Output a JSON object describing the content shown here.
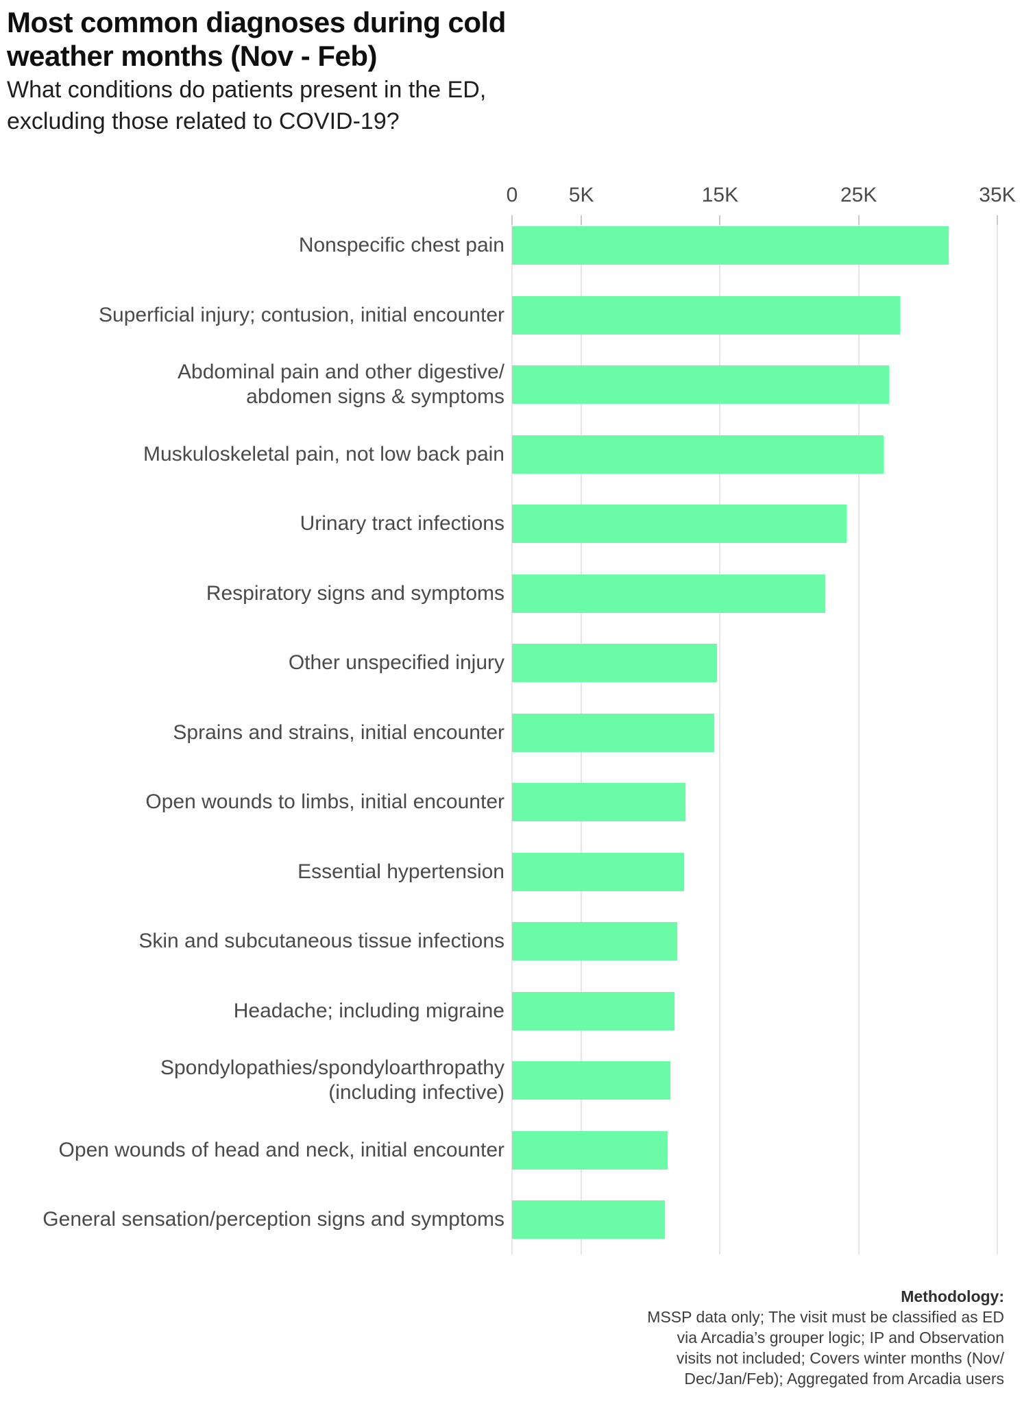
{
  "header": {
    "title": "Most common diagnoses during cold\nweather months (Nov - Feb)",
    "subtitle": "What conditions do patients present in the ED,\nexcluding those related to COVID-19?"
  },
  "chart_data": {
    "type": "bar",
    "orientation": "horizontal",
    "title": "Most common diagnoses during cold weather months (Nov - Feb)",
    "subtitle": "What conditions do patients present in the ED, excluding those related to COVID-19?",
    "xlabel": "",
    "ylabel": "",
    "xlim": [
      0,
      35000
    ],
    "grid": "vertical-gridlines-at-labeled-ticks",
    "legend": "none",
    "x_ticks": [
      {
        "label": "0",
        "value": 0
      },
      {
        "label": "5K",
        "value": 5000
      },
      {
        "label": "15K",
        "value": 15000
      },
      {
        "label": "25K",
        "value": 25000
      },
      {
        "label": "35K",
        "value": 35000
      }
    ],
    "categories": [
      "Nonspecific chest pain",
      "Superficial injury; contusion, initial encounter",
      "Abdominal pain and other digestive/\nabdomen signs & symptoms",
      "Muskuloskeletal pain, not low back pain",
      "Urinary tract infections",
      "Respiratory signs and symptoms",
      "Other unspecified injury",
      "Sprains and strains, initial encounter",
      "Open wounds to limbs, initial encounter",
      "Essential hypertension",
      "Skin and subcutaneous tissue infections",
      "Headache; including migraine",
      "Spondylopathies/spondyloarthropathy\n(including infective)",
      "Open wounds of head and neck, initial encounter",
      "General sensation/perception signs and symptoms"
    ],
    "values": [
      31500,
      28000,
      27200,
      26800,
      24100,
      22600,
      14800,
      14600,
      12500,
      12400,
      11900,
      11700,
      11400,
      11200,
      11000
    ],
    "bar_color": "#6BFBA6",
    "gridline_color": "#E6E6E6",
    "tick_color": "#C9C9C9"
  },
  "footer": {
    "heading": "Methodology:",
    "body": "MSSP data only; The visit must be classified as ED\nvia Arcadia’s grouper logic; IP and Observation\nvisits not included; Covers winter months (Nov/\nDec/Jan/Feb); Aggregated from Arcadia users"
  }
}
